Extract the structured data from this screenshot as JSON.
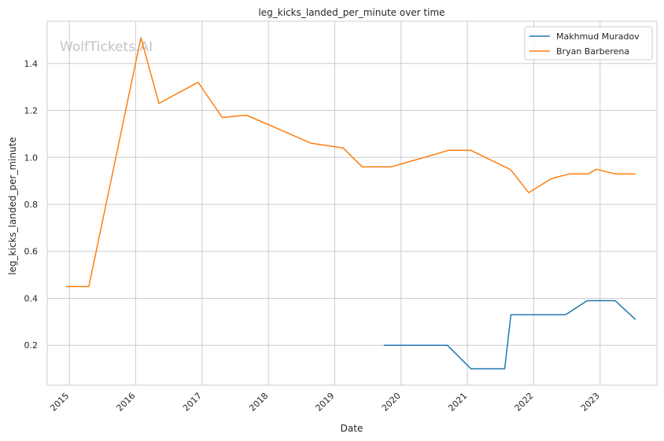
{
  "chart_data": {
    "type": "line",
    "title": "leg_kicks_landed_per_minute over time",
    "xlabel": "Date",
    "ylabel": "leg_kicks_landed_per_minute",
    "watermark": "WolfTickets.AI",
    "grid": true,
    "legend_position": "top-right",
    "xlim": [
      "2014-09-01",
      "2023-11-10"
    ],
    "ylim": [
      0.03,
      1.58
    ],
    "xticks": [
      "2015",
      "2016",
      "2017",
      "2018",
      "2019",
      "2020",
      "2021",
      "2022",
      "2023"
    ],
    "yticks": [
      0.2,
      0.4,
      0.6,
      0.8,
      1.0,
      1.2,
      1.4
    ],
    "ytick_labels": [
      "0.2",
      "0.4",
      "0.6",
      "0.8",
      "1.0",
      "1.2",
      "1.4"
    ],
    "series": [
      {
        "name": "Makhmud Muradov",
        "color": "#1f77b4",
        "x": [
          "2019-09-28",
          "2020-09-12",
          "2021-01-20",
          "2021-07-25",
          "2021-08-28",
          "2022-06-25",
          "2022-10-22",
          "2023-03-25",
          "2023-07-15"
        ],
        "y": [
          0.2,
          0.2,
          0.1,
          0.1,
          0.33,
          0.33,
          0.39,
          0.39,
          0.31
        ]
      },
      {
        "name": "Bryan Barberena",
        "color": "#ff7f0e",
        "x": [
          "2014-12-13",
          "2015-04-18",
          "2016-01-30",
          "2016-05-08",
          "2016-12-10",
          "2017-04-22",
          "2017-09-02",
          "2018-08-25",
          "2019-02-17",
          "2019-06-01",
          "2019-11-09",
          "2020-09-19",
          "2021-01-20",
          "2021-08-21",
          "2021-09-04",
          "2021-12-04",
          "2022-04-09",
          "2022-07-16",
          "2022-10-29",
          "2022-12-10",
          "2023-03-25",
          "2023-07-15"
        ],
        "y": [
          0.45,
          0.45,
          1.51,
          1.23,
          1.32,
          1.17,
          1.18,
          1.06,
          1.04,
          0.96,
          0.96,
          1.03,
          1.03,
          0.95,
          0.94,
          0.85,
          0.91,
          0.93,
          0.93,
          0.95,
          0.93,
          0.93
        ]
      }
    ]
  }
}
